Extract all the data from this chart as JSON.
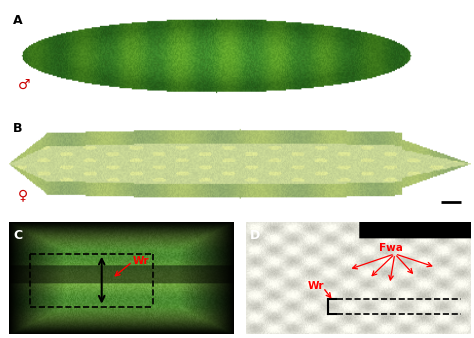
{
  "figure_width": 4.74,
  "figure_height": 3.38,
  "dpi": 100,
  "background_color": "#ffffff",
  "label_A": "A",
  "label_B": "B",
  "label_C": "C",
  "label_D": "D",
  "symbol_male": "♂",
  "symbol_female": "♀",
  "red_color": [
    255,
    0,
    0
  ],
  "black_color": [
    0,
    0,
    0
  ],
  "white_color": [
    255,
    255,
    255
  ],
  "label_fontsize": 9,
  "anno_fontsize": 7.5,
  "panel_A_bg": [
    255,
    255,
    255
  ],
  "panel_B_bg": [
    255,
    255,
    255
  ],
  "panel_C_bg": [
    0,
    0,
    0
  ],
  "panel_D_bg": [
    0,
    0,
    0
  ],
  "fruit_A_color": [
    110,
    160,
    60
  ],
  "fruit_B_color": [
    180,
    200,
    120
  ],
  "close_C_bg": [
    140,
    190,
    90
  ],
  "close_D_bg": [
    230,
    225,
    200
  ]
}
